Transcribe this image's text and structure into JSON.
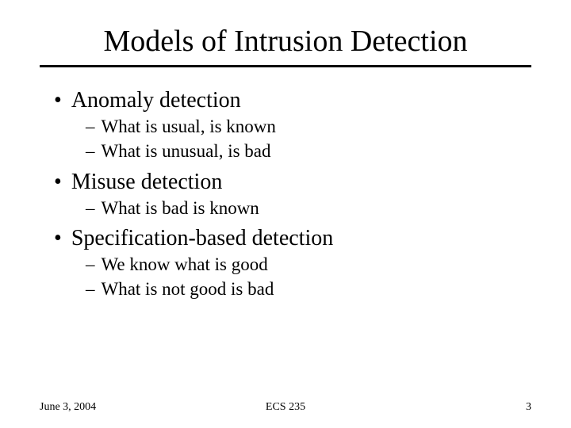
{
  "title": "Models of Intrusion Detection",
  "bullets": [
    {
      "label": "Anomaly detection",
      "subs": [
        "What is usual, is known",
        "What is unusual, is bad"
      ]
    },
    {
      "label": "Misuse detection",
      "subs": [
        "What is bad is known"
      ]
    },
    {
      "label": "Specification-based detection",
      "subs": [
        "We know what is good",
        "What is not good is bad"
      ]
    }
  ],
  "footer": {
    "date": "June 3, 2004",
    "course": "ECS 235",
    "page": "3"
  },
  "style": {
    "title_fontsize": 38,
    "bullet_fontsize": 28,
    "sub_fontsize": 23,
    "footer_fontsize": 14,
    "text_color": "#000000",
    "background_color": "#ffffff",
    "divider_color": "#000000",
    "divider_thickness": 3
  }
}
